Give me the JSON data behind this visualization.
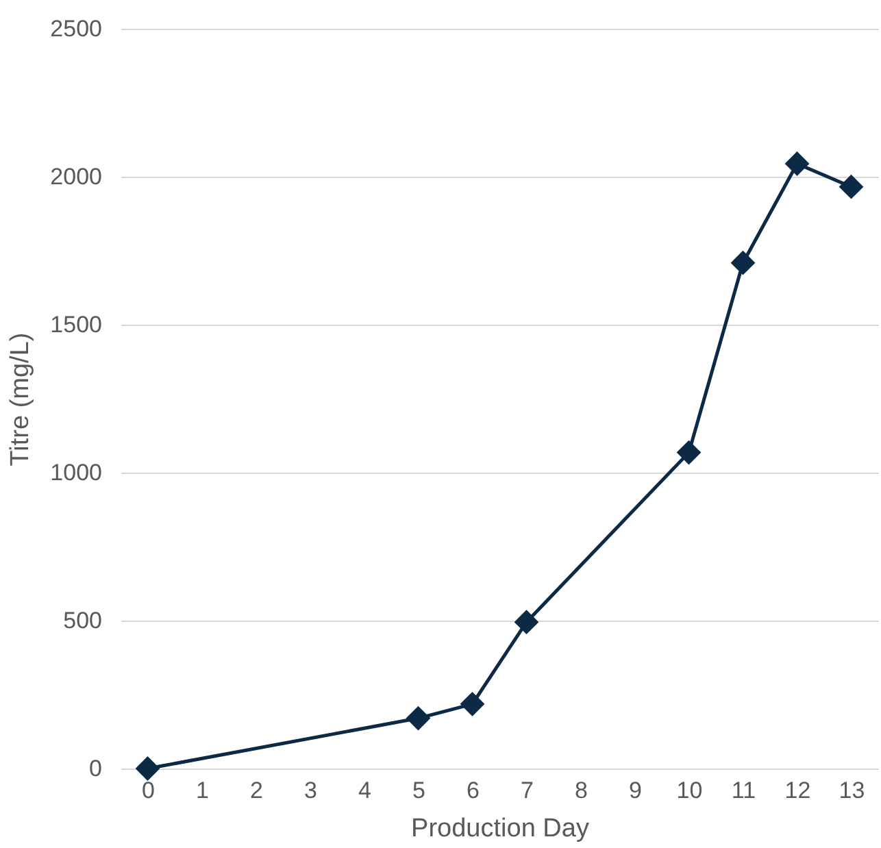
{
  "chart_data": {
    "type": "line",
    "xlabel": "Production Day",
    "ylabel": "Titre (mg/L)",
    "x": [
      0,
      5,
      6,
      7,
      10,
      11,
      12,
      13
    ],
    "series": [
      {
        "color": "#0c2a45",
        "values": [
          0,
          170,
          218,
          495,
          1068,
          1709,
          2044,
          1966
        ]
      }
    ],
    "xlim": [
      -0.5,
      13.5
    ],
    "xticks": [
      0,
      1,
      2,
      3,
      4,
      5,
      6,
      7,
      8,
      9,
      10,
      11,
      12,
      13
    ],
    "ylim": [
      0,
      2500
    ],
    "yticks": [
      0,
      500,
      1000,
      1500,
      2000,
      2500
    ],
    "grid": "y",
    "marker": "diamond",
    "line_style": "solid"
  }
}
